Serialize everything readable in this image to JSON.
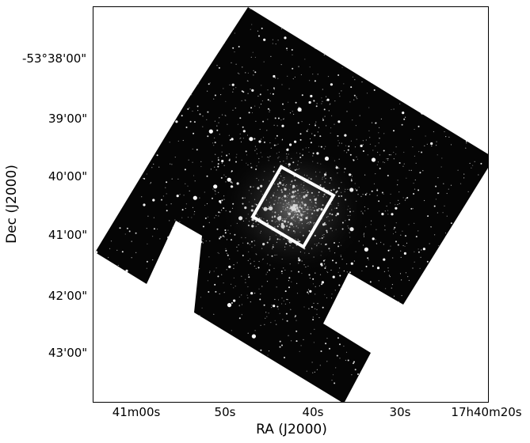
{
  "figure": {
    "x_axis_label": "RA (J2000)",
    "y_axis_label": "Dec (J2000)",
    "x_ticks": [
      "41m00s",
      "50s",
      "40s",
      "30s",
      "17h40m20s"
    ],
    "y_ticks": [
      "-53°38'00\"",
      "39'00\"",
      "40'00\"",
      "41'00\"",
      "42'00\"",
      "43'00\""
    ],
    "mosaic_fill_color": "#050505",
    "star_color": "#ffffff",
    "box_color": "#ffffff"
  }
}
